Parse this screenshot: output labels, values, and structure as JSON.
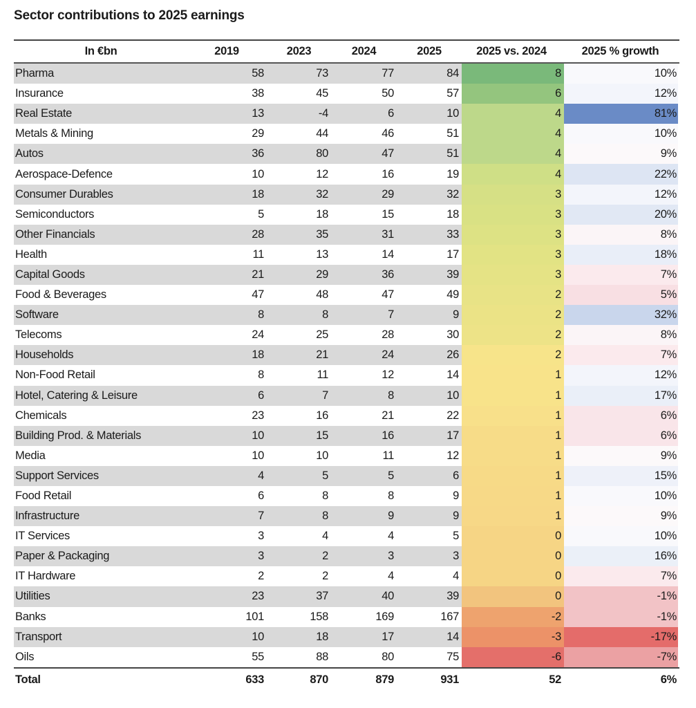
{
  "title": "Sector contributions to 2025 earnings",
  "table": {
    "headers": [
      "In €bn",
      "2019",
      "2023",
      "2024",
      "2025",
      "2025 vs. 2024",
      "2025 % growth"
    ],
    "rows": [
      {
        "name": "Pharma",
        "v2019": "58",
        "v2023": "73",
        "v2024": "77",
        "v2025": "84",
        "diff": "8",
        "growth": "10%",
        "diff_color": "#7ab97a",
        "growth_color": "#f9f9fc"
      },
      {
        "name": "Insurance",
        "v2019": "38",
        "v2023": "45",
        "v2024": "50",
        "v2025": "57",
        "diff": "6",
        "growth": "12%",
        "diff_color": "#94c57e",
        "growth_color": "#f3f5fb"
      },
      {
        "name": "Real Estate",
        "v2019": "13",
        "v2023": "-4",
        "v2024": "6",
        "v2025": "10",
        "diff": "4",
        "growth": "81%",
        "diff_color": "#bdd88a",
        "growth_color": "#6a8bc6"
      },
      {
        "name": "Metals & Mining",
        "v2019": "29",
        "v2023": "44",
        "v2024": "46",
        "v2025": "51",
        "diff": "4",
        "growth": "10%",
        "diff_color": "#bdd88a",
        "growth_color": "#f9f9fc"
      },
      {
        "name": "Autos",
        "v2019": "36",
        "v2023": "80",
        "v2024": "47",
        "v2025": "51",
        "diff": "4",
        "growth": "9%",
        "diff_color": "#bdd88a",
        "growth_color": "#fcf9fa"
      },
      {
        "name": "Aerospace-Defence",
        "v2019": "10",
        "v2023": "12",
        "v2024": "16",
        "v2025": "19",
        "diff": "4",
        "growth": "22%",
        "diff_color": "#cfdf86",
        "growth_color": "#dde5f3"
      },
      {
        "name": "Consumer Durables",
        "v2019": "18",
        "v2023": "32",
        "v2024": "29",
        "v2025": "32",
        "diff": "3",
        "growth": "12%",
        "diff_color": "#d6e085",
        "growth_color": "#f3f5fb"
      },
      {
        "name": "Semiconductors",
        "v2019": "5",
        "v2023": "18",
        "v2024": "15",
        "v2025": "18",
        "diff": "3",
        "growth": "20%",
        "diff_color": "#d9e184",
        "growth_color": "#e1e8f4"
      },
      {
        "name": "Other Financials",
        "v2019": "28",
        "v2023": "35",
        "v2024": "31",
        "v2025": "33",
        "diff": "3",
        "growth": "8%",
        "diff_color": "#dde284",
        "growth_color": "#fbf5f7"
      },
      {
        "name": "Health",
        "v2019": "11",
        "v2023": "13",
        "v2024": "14",
        "v2025": "17",
        "diff": "3",
        "growth": "18%",
        "diff_color": "#e2e384",
        "growth_color": "#e9eef8"
      },
      {
        "name": "Capital Goods",
        "v2019": "21",
        "v2023": "29",
        "v2024": "36",
        "v2025": "39",
        "diff": "3",
        "growth": "7%",
        "diff_color": "#e5e385",
        "growth_color": "#fbeaed"
      },
      {
        "name": "Food & Beverages",
        "v2019": "47",
        "v2023": "48",
        "v2024": "47",
        "v2025": "49",
        "diff": "2",
        "growth": "5%",
        "diff_color": "#e8e386",
        "growth_color": "#f8dfe3"
      },
      {
        "name": "Software",
        "v2019": "8",
        "v2023": "8",
        "v2024": "7",
        "v2025": "9",
        "diff": "2",
        "growth": "32%",
        "diff_color": "#ebe386",
        "growth_color": "#c9d6ec"
      },
      {
        "name": "Telecoms",
        "v2019": "24",
        "v2023": "25",
        "v2024": "28",
        "v2025": "30",
        "diff": "2",
        "growth": "8%",
        "diff_color": "#ede387",
        "growth_color": "#fbf5f7"
      },
      {
        "name": "Households",
        "v2019": "18",
        "v2023": "21",
        "v2024": "24",
        "v2025": "26",
        "diff": "2",
        "growth": "7%",
        "diff_color": "#f7e48a",
        "growth_color": "#fbeaed"
      },
      {
        "name": "Non-Food Retail",
        "v2019": "8",
        "v2023": "11",
        "v2024": "12",
        "v2025": "14",
        "diff": "1",
        "growth": "12%",
        "diff_color": "#f8e38a",
        "growth_color": "#f3f5fb"
      },
      {
        "name": "Hotel, Catering & Leisure",
        "v2019": "6",
        "v2023": "7",
        "v2024": "8",
        "v2025": "10",
        "diff": "1",
        "growth": "17%",
        "diff_color": "#f8e38a",
        "growth_color": "#eaeff8"
      },
      {
        "name": "Chemicals",
        "v2019": "23",
        "v2023": "16",
        "v2024": "21",
        "v2025": "22",
        "diff": "1",
        "growth": "6%",
        "diff_color": "#f8e08a",
        "growth_color": "#f9e5e9"
      },
      {
        "name": "Building Prod. & Materials",
        "v2019": "10",
        "v2023": "15",
        "v2024": "16",
        "v2025": "17",
        "diff": "1",
        "growth": "6%",
        "diff_color": "#f7dc88",
        "growth_color": "#f9e5e9"
      },
      {
        "name": "Media",
        "v2019": "10",
        "v2023": "10",
        "v2024": "11",
        "v2025": "12",
        "diff": "1",
        "growth": "9%",
        "diff_color": "#f7dc88",
        "growth_color": "#fcf9fa"
      },
      {
        "name": "Support Services",
        "v2019": "4",
        "v2023": "5",
        "v2024": "5",
        "v2025": "6",
        "diff": "1",
        "growth": "15%",
        "diff_color": "#f7da87",
        "growth_color": "#eef1f9"
      },
      {
        "name": "Food Retail",
        "v2019": "6",
        "v2023": "8",
        "v2024": "8",
        "v2025": "9",
        "diff": "1",
        "growth": "10%",
        "diff_color": "#f7d987",
        "growth_color": "#f9f9fc"
      },
      {
        "name": "Infrastructure",
        "v2019": "7",
        "v2023": "8",
        "v2024": "9",
        "v2025": "9",
        "diff": "1",
        "growth": "9%",
        "diff_color": "#f7d887",
        "growth_color": "#fcf9fa"
      },
      {
        "name": "IT Services",
        "v2019": "3",
        "v2023": "4",
        "v2024": "4",
        "v2025": "5",
        "diff": "0",
        "growth": "10%",
        "diff_color": "#f6d585",
        "growth_color": "#f9f9fc"
      },
      {
        "name": "Paper & Packaging",
        "v2019": "3",
        "v2023": "2",
        "v2024": "3",
        "v2025": "3",
        "diff": "0",
        "growth": "16%",
        "diff_color": "#f6d585",
        "growth_color": "#ebf0f8"
      },
      {
        "name": "IT Hardware",
        "v2019": "2",
        "v2023": "2",
        "v2024": "4",
        "v2025": "4",
        "diff": "0",
        "growth": "7%",
        "diff_color": "#f6d585",
        "growth_color": "#fbeaed"
      },
      {
        "name": "Utilities",
        "v2019": "23",
        "v2023": "37",
        "v2024": "40",
        "v2025": "39",
        "diff": "0",
        "growth": "-1%",
        "diff_color": "#f2c47e",
        "growth_color": "#f2c3c6"
      },
      {
        "name": "Banks",
        "v2019": "101",
        "v2023": "158",
        "v2024": "169",
        "v2025": "167",
        "diff": "-2",
        "growth": "-1%",
        "diff_color": "#eea36e",
        "growth_color": "#f2c3c6"
      },
      {
        "name": "Transport",
        "v2019": "10",
        "v2023": "18",
        "v2024": "17",
        "v2025": "14",
        "diff": "-3",
        "growth": "-17%",
        "diff_color": "#ec9268",
        "growth_color": "#e46c6a"
      },
      {
        "name": "Oils",
        "v2019": "55",
        "v2023": "88",
        "v2024": "80",
        "v2025": "75",
        "diff": "-6",
        "growth": "-7%",
        "diff_color": "#e46f6a",
        "growth_color": "#eba1a3"
      }
    ],
    "total": {
      "name": "Total",
      "v2019": "633",
      "v2023": "870",
      "v2024": "879",
      "v2025": "931",
      "diff": "52",
      "growth": "6%"
    }
  }
}
